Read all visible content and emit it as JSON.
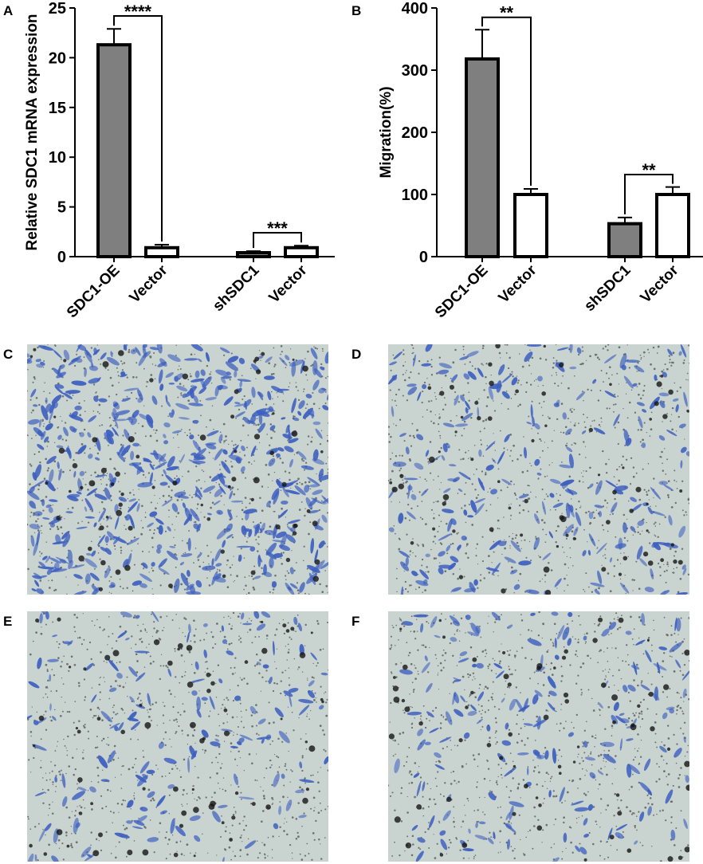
{
  "panels": {
    "a": "A",
    "b": "B",
    "c": "C",
    "d": "D",
    "e": "E",
    "f": "F"
  },
  "chart_data": [
    {
      "type": "bar",
      "panel": "A",
      "ylabel": "Relative SDC1 mRNA expression",
      "xlabel": "",
      "ylim": [
        0,
        25
      ],
      "yticks": [
        0,
        5,
        10,
        15,
        20,
        25
      ],
      "categories": [
        "SDC1-OE",
        "Vector",
        "shSDC1",
        "Vector"
      ],
      "values": [
        21.3,
        0.9,
        0.4,
        0.9
      ],
      "errors": [
        1.6,
        0.3,
        0.15,
        0.2
      ],
      "fills": [
        "#7f7f7f",
        "#ffffff",
        "#7f7f7f",
        "#ffffff"
      ],
      "significance": [
        {
          "from": 0,
          "to": 1,
          "label": "****",
          "y": 24.2
        },
        {
          "from": 2,
          "to": 3,
          "label": "***",
          "y": 2.4
        }
      ]
    },
    {
      "type": "bar",
      "panel": "B",
      "ylabel": "Migration(%)",
      "xlabel": "",
      "ylim": [
        0,
        400
      ],
      "yticks": [
        0,
        100,
        200,
        300,
        400
      ],
      "categories": [
        "SDC1-OE",
        "Vector",
        "shSDC1",
        "Vector"
      ],
      "values": [
        318,
        100,
        53,
        100
      ],
      "errors": [
        47,
        9,
        10,
        12
      ],
      "fills": [
        "#7f7f7f",
        "#ffffff",
        "#7f7f7f",
        "#ffffff"
      ],
      "significance": [
        {
          "from": 0,
          "to": 1,
          "label": "**",
          "y": 385
        },
        {
          "from": 2,
          "to": 3,
          "label": "**",
          "y": 132
        }
      ]
    }
  ],
  "micrographs": [
    {
      "panel": "C",
      "density": 1.0,
      "seed": 11
    },
    {
      "panel": "D",
      "density": 0.45,
      "seed": 23
    },
    {
      "panel": "E",
      "density": 0.3,
      "seed": 37
    },
    {
      "panel": "F",
      "density": 0.35,
      "seed": 53
    }
  ],
  "colors": {
    "bar_gray": "#7f7f7f",
    "stain_blue": "#3d5fbf",
    "membrane_bg": "#c9d4d0",
    "pore": "#222222"
  }
}
